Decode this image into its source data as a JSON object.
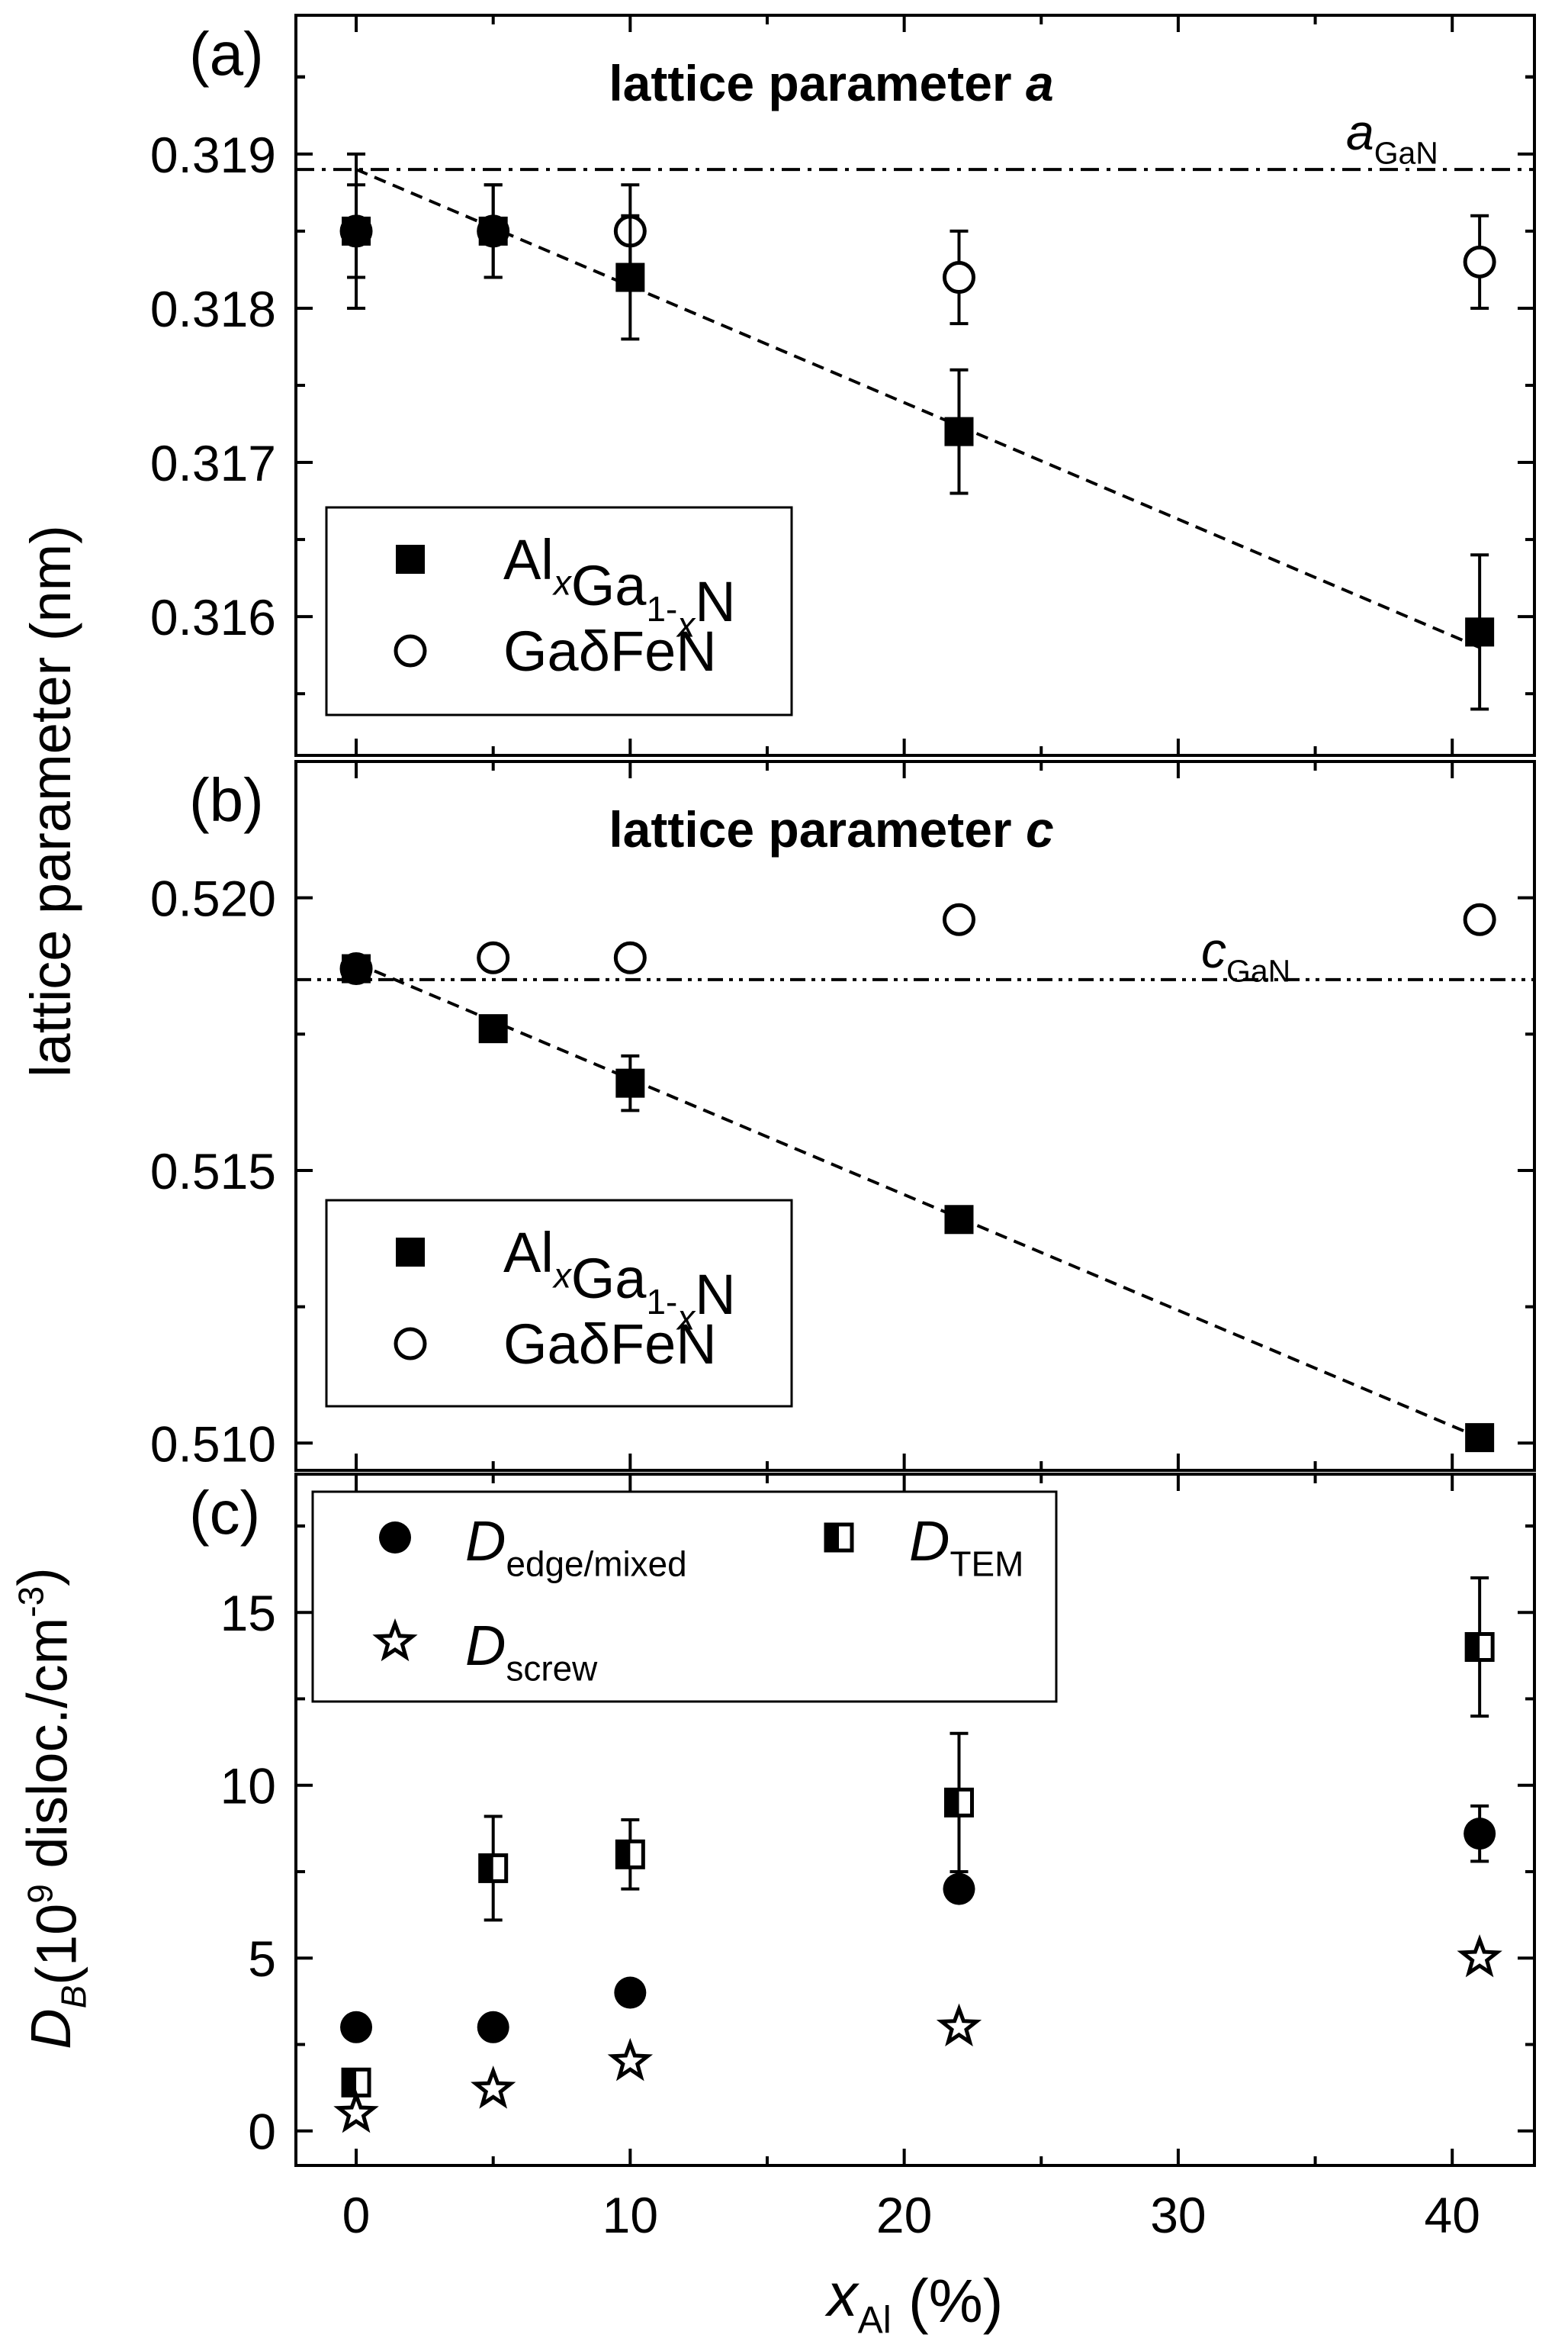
{
  "chart_data": [
    {
      "type": "scatter",
      "panel_label": "(a)",
      "title_text": "lattice parameter ",
      "title_italic": "a",
      "ylim": [
        0.3151,
        0.3199
      ],
      "yticks": [
        0.316,
        0.317,
        0.318,
        0.319
      ],
      "ytick_labels": [
        "0.316",
        "0.317",
        "0.318",
        "0.319"
      ],
      "reference": {
        "value": 0.3189,
        "label_main": "a",
        "label_sub": "GaN"
      },
      "series": [
        {
          "name_parts": [
            "Al",
            "x",
            "Ga",
            "1-",
            "x",
            "N"
          ],
          "marker": "filled-square",
          "x": [
            0,
            5,
            10,
            22,
            41
          ],
          "y": [
            0.3185,
            0.3185,
            0.3182,
            0.3172,
            0.3159
          ],
          "err": [
            0.0005,
            0.0003,
            0.0004,
            0.0004,
            0.0005
          ]
        },
        {
          "name": "GaδFeN",
          "marker": "open-circle",
          "x": [
            0,
            5,
            10,
            22,
            41
          ],
          "y": [
            0.3185,
            0.3185,
            0.3185,
            0.3182,
            0.3183
          ],
          "err": [
            0.0003,
            0.0003,
            0.0003,
            0.0003,
            0.0003
          ]
        }
      ],
      "trend": {
        "x": [
          0,
          41
        ],
        "y": [
          0.3189,
          0.3158
        ]
      }
    },
    {
      "type": "scatter",
      "panel_label": "(b)",
      "title_text": "lattice parameter ",
      "title_italic": "c",
      "ylim": [
        0.5095,
        0.5225
      ],
      "yticks": [
        0.51,
        0.515,
        0.52
      ],
      "ytick_labels": [
        "0.510",
        "0.515",
        "0.520"
      ],
      "reference": {
        "value": 0.5185,
        "label_main": "c",
        "label_sub": "GaN"
      },
      "series": [
        {
          "name_parts": [
            "Al",
            "x",
            "Ga",
            "1-",
            "x",
            "N"
          ],
          "marker": "filled-square",
          "x": [
            0,
            5,
            10,
            22,
            41
          ],
          "y": [
            0.5187,
            0.5176,
            0.5166,
            0.5141,
            0.5101
          ],
          "err": [
            0,
            0,
            0.0005,
            0,
            0
          ]
        },
        {
          "name": "GaδFeN",
          "marker": "open-circle",
          "x": [
            0,
            5,
            10,
            22,
            41
          ],
          "y": [
            0.5187,
            0.5189,
            0.5189,
            0.5196,
            0.5196
          ],
          "err": [
            0,
            0,
            0,
            0,
            0
          ]
        }
      ],
      "trend": {
        "x": [
          0,
          41
        ],
        "y": [
          0.5188,
          0.5101
        ]
      }
    },
    {
      "type": "scatter",
      "panel_label": "(c)",
      "ylim": [
        -1,
        19
      ],
      "yticks": [
        0,
        5,
        10,
        15
      ],
      "ytick_labels": [
        "0",
        "5",
        "10",
        "15"
      ],
      "xlim": [
        -2.2,
        43
      ],
      "xticks": [
        0,
        10,
        20,
        30,
        40
      ],
      "xtick_labels": [
        "0",
        "10",
        "20",
        "30",
        "40"
      ],
      "series": [
        {
          "name_main": "D",
          "name_sub": "edge/mixed",
          "marker": "filled-circle",
          "x": [
            0,
            5,
            10,
            22,
            41
          ],
          "y": [
            3,
            3,
            4,
            7,
            8.6
          ],
          "err": [
            0,
            0,
            0,
            0,
            0.8
          ]
        },
        {
          "name_main": "D",
          "name_sub": "TEM",
          "marker": "half-square",
          "x": [
            0,
            5,
            10,
            22,
            41
          ],
          "y": [
            1.4,
            7.6,
            8.0,
            9.5,
            14.0
          ],
          "err": [
            0,
            1.5,
            1.0,
            2.0,
            2.0
          ]
        },
        {
          "name_main": "D",
          "name_sub": "screw",
          "marker": "open-star",
          "x": [
            0,
            5,
            10,
            22,
            41
          ],
          "y": [
            0.5,
            1.2,
            2.0,
            3.0,
            5.0
          ],
          "err": [
            0,
            0,
            0,
            0,
            0
          ]
        }
      ]
    }
  ],
  "axes": {
    "shared_ylabel": "lattice parameter (nm)",
    "c_ylabel_main": "D",
    "c_ylabel_sub": "B",
    "c_ylabel_rest": "(10",
    "c_ylabel_exp": "9",
    "c_ylabel_unit": " disloc./cm",
    "c_ylabel_unit_exp": "-3",
    "c_ylabel_close": ")",
    "xlabel_main": "x",
    "xlabel_sub": "Al",
    "xlabel_rest": " (%)"
  }
}
